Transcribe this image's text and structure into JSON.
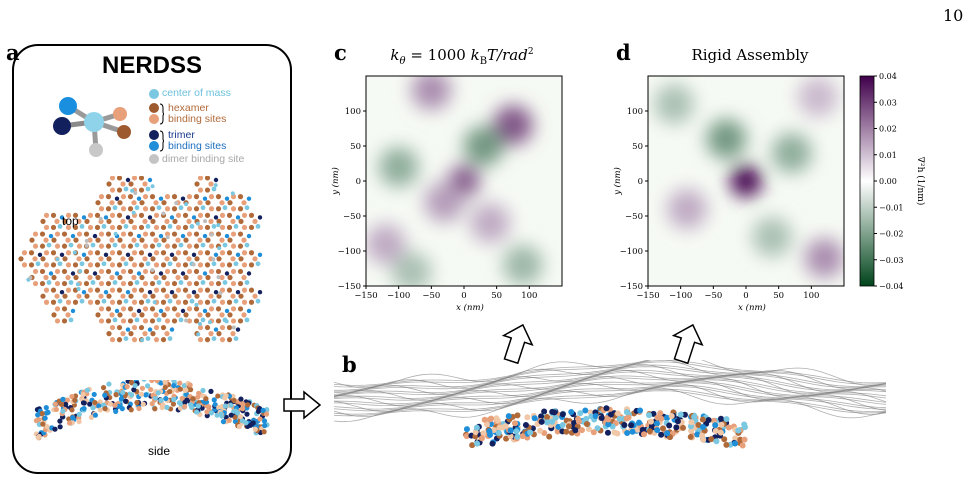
{
  "page_number": "10",
  "panels": {
    "a": {
      "label": "a",
      "title": "NERDSS",
      "legend": {
        "center": "center of mass",
        "hexamer_line1": "hexamer",
        "hexamer_line2": "binding sites",
        "trimer_line1": "trimer",
        "trimer_line2": "binding sites",
        "dimer": "dimer binding site"
      },
      "top_label": "top",
      "side_label": "side",
      "colors": {
        "center": "#79c7e0",
        "hexamer": "#b06a3a",
        "hexamer_light": "#e8a07a",
        "trimer": "#13205e",
        "trimer_light": "#1f8ed8",
        "dimer": "#bdbdbd"
      }
    },
    "b": {
      "label": "b"
    },
    "c": {
      "label": "c",
      "title_text": "k",
      "title_sub": "θ",
      "title_rest": " = 1000 ",
      "title_k2": "k",
      "title_sub2": "B",
      "title_tail": "T/rad",
      "title_sup": "2"
    },
    "d": {
      "label": "d",
      "title": "Rigid Assembly"
    }
  },
  "chart_data": [
    {
      "type": "heatmap",
      "panel": "c",
      "title": "kθ = 1000 kBT/rad2",
      "xlabel": "x (nm)",
      "ylabel": "y (nm)",
      "xlim": [
        -150,
        150
      ],
      "ylim": [
        -150,
        150
      ],
      "xticks": [
        "−150",
        "−100",
        "−50",
        "0",
        "50",
        "100"
      ],
      "yticks": [
        "100",
        "50",
        "0",
        "−50",
        "−100",
        "−150"
      ],
      "colormap": "PRGn_r",
      "blobs": [
        {
          "x": 0,
          "y": 0,
          "value": 0.02
        },
        {
          "x": 75,
          "y": 80,
          "value": 0.012
        },
        {
          "x": -50,
          "y": 130,
          "value": 0.008
        },
        {
          "x": 30,
          "y": 50,
          "value": -0.01
        },
        {
          "x": -100,
          "y": 20,
          "value": -0.008
        },
        {
          "x": 40,
          "y": -60,
          "value": 0.006
        },
        {
          "x": -30,
          "y": -30,
          "value": 0.007
        },
        {
          "x": 90,
          "y": -120,
          "value": -0.007
        },
        {
          "x": -120,
          "y": -90,
          "value": 0.006
        },
        {
          "x": -80,
          "y": -130,
          "value": -0.006
        }
      ]
    },
    {
      "type": "heatmap",
      "panel": "d",
      "title": "Rigid Assembly",
      "xlabel": "x (nm)",
      "ylabel": "y (nm)",
      "xlim": [
        -150,
        150
      ],
      "ylim": [
        -150,
        150
      ],
      "xticks": [
        "−150",
        "−100",
        "−50",
        "0",
        "50",
        "100"
      ],
      "yticks": [
        "100",
        "50",
        "0",
        "−50",
        "−100",
        "−150"
      ],
      "colormap": "PRGn_r",
      "colorbar": {
        "label": "∇²h (1/nm)",
        "range": [
          -0.04,
          0.04
        ],
        "ticks": [
          "0.04",
          "0.03",
          "0.02",
          "0.01",
          "0.00",
          "−0.01",
          "−0.02",
          "−0.03",
          "−0.04"
        ]
      },
      "blobs": [
        {
          "x": 0,
          "y": 0,
          "value": 0.038
        },
        {
          "x": 120,
          "y": -110,
          "value": 0.008
        },
        {
          "x": -30,
          "y": 60,
          "value": -0.01
        },
        {
          "x": 70,
          "y": 40,
          "value": -0.008
        },
        {
          "x": -90,
          "y": -40,
          "value": 0.006
        },
        {
          "x": 40,
          "y": -80,
          "value": -0.006
        },
        {
          "x": -110,
          "y": 110,
          "value": -0.006
        },
        {
          "x": 110,
          "y": 120,
          "value": 0.005
        }
      ]
    }
  ]
}
